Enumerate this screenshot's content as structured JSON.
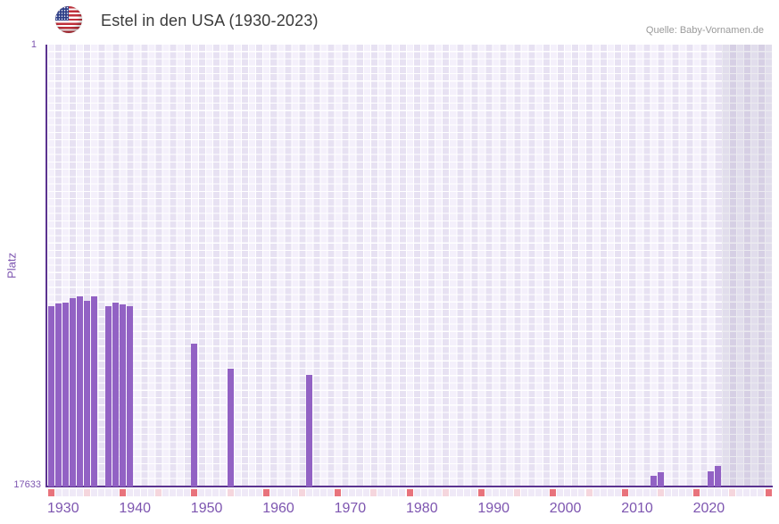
{
  "header": {
    "title": "Estel in den USA (1930-2023)",
    "source": "Quelle: Baby-Vornamen.de"
  },
  "colors": {
    "bar": "#9262c4",
    "axis_line": "#5b3390",
    "axis_text": "#7d55b0",
    "plot_background": "#f4f0fb",
    "future_band": "rgba(104,92,140,0.13)",
    "strip_default": "#efe9f7",
    "strip_decade": "#e8737c",
    "strip_half_decade": "#f5d6dd"
  },
  "chart_data": {
    "type": "bar",
    "title": "Estel in den USA (1930-2023)",
    "ylabel": "Platz",
    "xlabel": "",
    "y_axis": {
      "min": 1,
      "max": 17633,
      "inverted": true,
      "top_tick": "1",
      "bottom_tick": "17633"
    },
    "x_axis": {
      "first_year": 1930,
      "last_data_year": 2023,
      "last_padding_year": 2030,
      "tick_labels": [
        "1930",
        "1940",
        "1950",
        "1960",
        "1970",
        "1980",
        "1990",
        "2000",
        "2010",
        "2020"
      ]
    },
    "legend": "none",
    "grid": true,
    "bars": [
      {
        "year": 1930,
        "platz": 10440
      },
      {
        "year": 1931,
        "platz": 10340
      },
      {
        "year": 1932,
        "platz": 10290
      },
      {
        "year": 1933,
        "platz": 10110
      },
      {
        "year": 1934,
        "platz": 10060
      },
      {
        "year": 1935,
        "platz": 10210
      },
      {
        "year": 1936,
        "platz": 10040
      },
      {
        "year": 1938,
        "platz": 10440
      },
      {
        "year": 1939,
        "platz": 10280
      },
      {
        "year": 1940,
        "platz": 10380
      },
      {
        "year": 1941,
        "platz": 10450
      },
      {
        "year": 1950,
        "platz": 11930
      },
      {
        "year": 1955,
        "platz": 12930
      },
      {
        "year": 1966,
        "platz": 13190
      },
      {
        "year": 2014,
        "platz": 17220
      },
      {
        "year": 2015,
        "platz": 17060
      },
      {
        "year": 2022,
        "platz": 17040
      },
      {
        "year": 2023,
        "platz": 16800
      }
    ]
  }
}
